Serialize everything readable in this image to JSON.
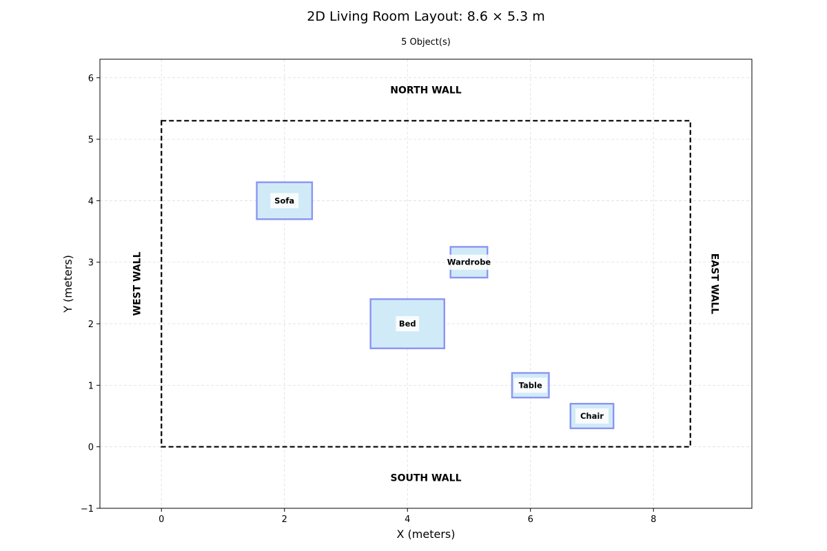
{
  "chart_data": {
    "type": "floor-plan",
    "title": "2D Living Room Layout: 8.6 × 5.3 m",
    "subtitle": "5 Object(s)",
    "xlabel": "X (meters)",
    "ylabel": "Y (meters)",
    "xlim": [
      -1,
      9.6
    ],
    "ylim": [
      -1,
      6.3
    ],
    "x_ticks": [
      0,
      2,
      4,
      6,
      8
    ],
    "y_ticks": [
      -1,
      0,
      1,
      2,
      3,
      4,
      5,
      6
    ],
    "tick_labels": {
      "x": [
        "0",
        "2",
        "4",
        "6",
        "8"
      ],
      "y": [
        "−1",
        "0",
        "1",
        "2",
        "3",
        "4",
        "5",
        "6"
      ]
    },
    "grid": true,
    "room": {
      "x": 0,
      "y": 0,
      "width": 8.6,
      "height": 5.3
    },
    "walls": {
      "north": "NORTH WALL",
      "south": "SOUTH WALL",
      "west": "WEST WALL",
      "east": "EAST WALL"
    },
    "objects": [
      {
        "name": "Sofa",
        "x": 1.55,
        "y": 3.7,
        "width": 0.9,
        "height": 0.6
      },
      {
        "name": "Wardrobe",
        "x": 4.7,
        "y": 2.75,
        "width": 0.6,
        "height": 0.5
      },
      {
        "name": "Bed",
        "x": 3.4,
        "y": 1.6,
        "width": 1.2,
        "height": 0.8
      },
      {
        "name": "Table",
        "x": 5.7,
        "y": 0.8,
        "width": 0.6,
        "height": 0.4
      },
      {
        "name": "Chair",
        "x": 6.65,
        "y": 0.3,
        "width": 0.7,
        "height": 0.4
      }
    ],
    "colors": {
      "object_fill": "#d0ebf7",
      "object_edge": "#8b93f5",
      "room_edge": "#000000",
      "grid": "#dddddd"
    }
  }
}
